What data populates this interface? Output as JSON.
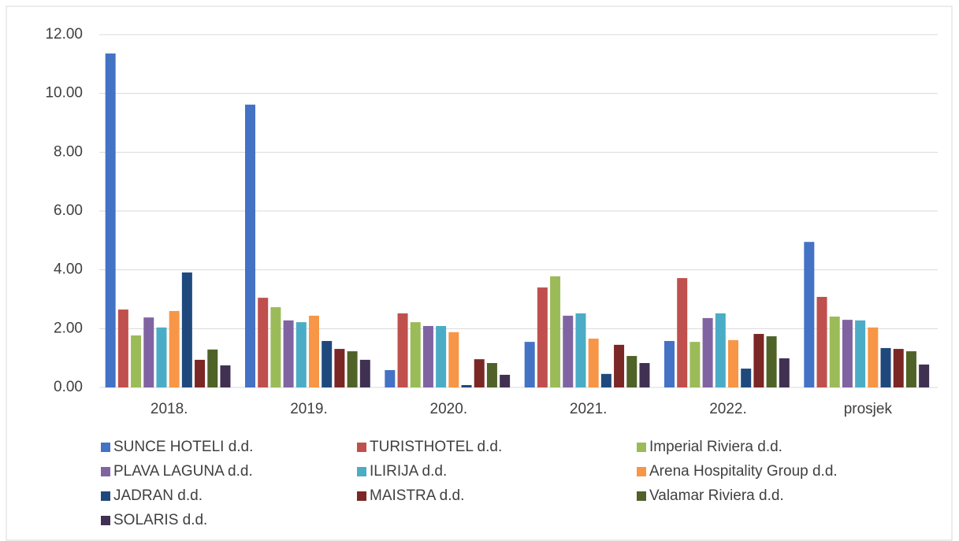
{
  "chart_data": {
    "type": "bar",
    "categories": [
      "2018.",
      "2019.",
      "2020.",
      "2021.",
      "2022.",
      "prosjek"
    ],
    "series": [
      {
        "name": "SUNCE HOTELI d.d.",
        "color": "#4472c4",
        "values": [
          11.36,
          9.62,
          0.59,
          1.55,
          1.58,
          4.95
        ]
      },
      {
        "name": "TURISTHOTEL d.d.",
        "color": "#c0504d",
        "values": [
          2.65,
          3.05,
          2.52,
          3.4,
          3.72,
          3.08
        ]
      },
      {
        "name": "Imperial Riviera d.d.",
        "color": "#9bbb59",
        "values": [
          1.77,
          2.73,
          2.22,
          3.78,
          1.55,
          2.41
        ]
      },
      {
        "name": "PLAVA LAGUNA d.d.",
        "color": "#8064a2",
        "values": [
          2.38,
          2.28,
          2.09,
          2.44,
          2.36,
          2.3
        ]
      },
      {
        "name": "ILIRIJA d.d.",
        "color": "#4bacc6",
        "values": [
          2.04,
          2.22,
          2.09,
          2.52,
          2.52,
          2.28
        ]
      },
      {
        "name": "Arena Hospitality Group d.d.",
        "color": "#f79646",
        "values": [
          2.6,
          2.44,
          1.88,
          1.66,
          1.61,
          2.04
        ]
      },
      {
        "name": "JADRAN d.d.",
        "color": "#1f497d",
        "values": [
          3.91,
          1.58,
          0.08,
          0.46,
          0.64,
          1.34
        ]
      },
      {
        "name": "MAISTRA d.d.",
        "color": "#7b2725",
        "values": [
          0.94,
          1.31,
          0.96,
          1.45,
          1.82,
          1.31
        ]
      },
      {
        "name": "Valamar Riviera d.d.",
        "color": "#4f6228",
        "values": [
          1.29,
          1.23,
          0.83,
          1.07,
          1.74,
          1.23
        ]
      },
      {
        "name": "SOLARIS d.d.",
        "color": "#403152",
        "values": [
          0.75,
          0.94,
          0.43,
          0.83,
          0.99,
          0.78
        ]
      }
    ],
    "ylim": [
      0,
      12
    ],
    "yticks": [
      {
        "value": 0,
        "label": "0.00"
      },
      {
        "value": 2,
        "label": "2.00"
      },
      {
        "value": 4,
        "label": "4.00"
      },
      {
        "value": 6,
        "label": "6.00"
      },
      {
        "value": 8,
        "label": "8.00"
      },
      {
        "value": 10,
        "label": "10.00"
      },
      {
        "value": 12,
        "label": "12.00"
      }
    ],
    "grid": true,
    "legend": "bottom"
  }
}
